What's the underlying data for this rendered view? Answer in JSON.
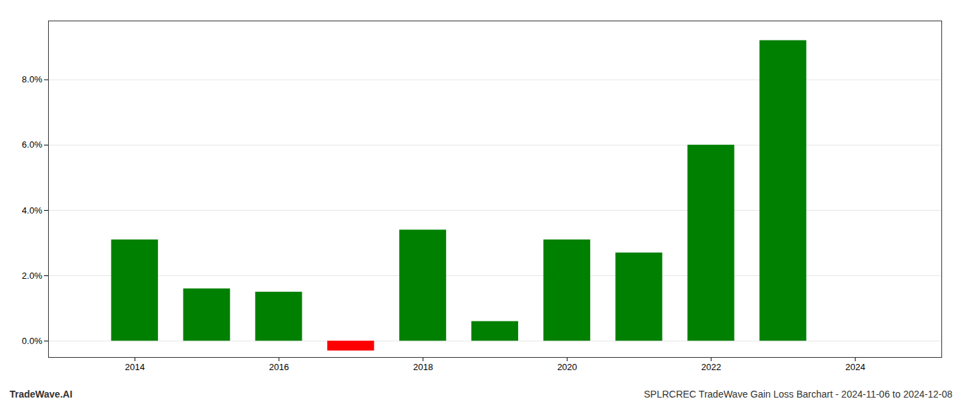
{
  "chart_data": {
    "type": "bar",
    "title": "SPLRCREC TradeWave Gain Loss Barchart - 2024-11-06 to 2024-12-08",
    "annotations": [
      {
        "text": "TradeWave.AI"
      }
    ],
    "x": [
      2014,
      2015,
      2016,
      2017,
      2018,
      2019,
      2020,
      2021,
      2022,
      2023
    ],
    "values": [
      0.031,
      0.016,
      0.015,
      -0.003,
      0.034,
      0.006,
      0.031,
      0.027,
      0.06,
      0.092
    ],
    "colors": [
      "#008000",
      "#008000",
      "#008000",
      "#ff0000",
      "#008000",
      "#008000",
      "#008000",
      "#008000",
      "#008000",
      "#008000"
    ],
    "xlim": [
      2012.8,
      2025.2
    ],
    "xticks": [
      2014,
      2016,
      2018,
      2020,
      2022,
      2024
    ],
    "ylim": [
      -0.005,
      0.098
    ],
    "yticks": [
      {
        "value": 0.0,
        "label": "0.0%"
      },
      {
        "value": 0.02,
        "label": "2.0%"
      },
      {
        "value": 0.04,
        "label": "4.0%"
      },
      {
        "value": 0.06,
        "label": "6.0%"
      },
      {
        "value": 0.08,
        "label": "8.0%"
      }
    ],
    "grid": true
  }
}
